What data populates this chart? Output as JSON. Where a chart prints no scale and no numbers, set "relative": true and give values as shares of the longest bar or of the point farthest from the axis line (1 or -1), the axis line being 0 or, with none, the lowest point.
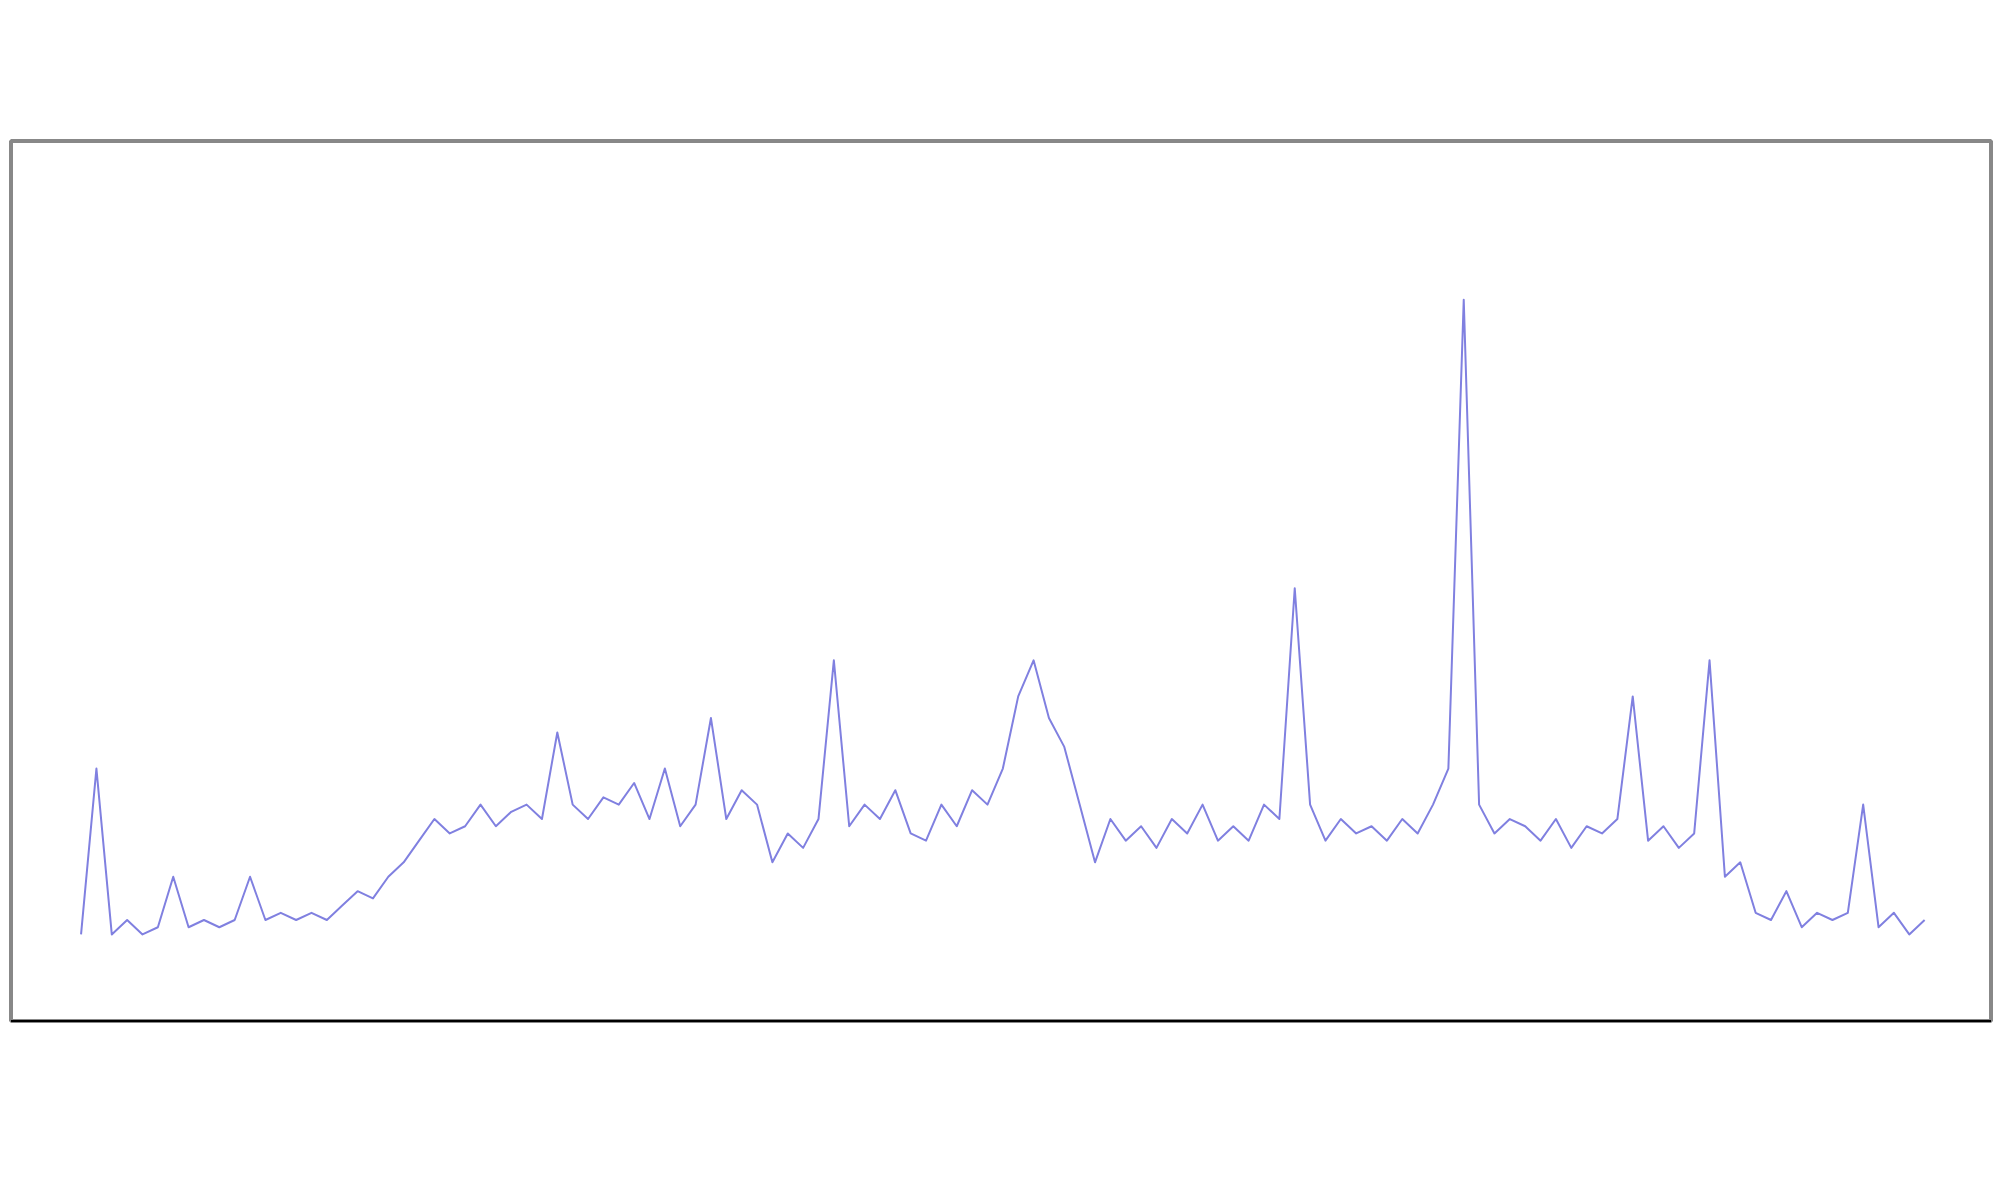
{
  "chart_data": {
    "type": "line",
    "relative": true,
    "grid": false,
    "categories": [
      null,
      null,
      null,
      null,
      null,
      null,
      null,
      null,
      null,
      null,
      null,
      null,
      null,
      null,
      null,
      null,
      null,
      null,
      null,
      null,
      null,
      null,
      null,
      null,
      null,
      null,
      null,
      null,
      null,
      null,
      null,
      null,
      null,
      null,
      null,
      null,
      null,
      null,
      null,
      null,
      null,
      null,
      null,
      null,
      null,
      null,
      null,
      null,
      null,
      null,
      null,
      null,
      null,
      null,
      null,
      null,
      null,
      null,
      null,
      null,
      null,
      null,
      null,
      null,
      null,
      null,
      null,
      null,
      null,
      null,
      null,
      null,
      null,
      null,
      null,
      null,
      null,
      null,
      null,
      null,
      null,
      null,
      null,
      null,
      null,
      null,
      null,
      null,
      null,
      null,
      null,
      null,
      null,
      null,
      null,
      null,
      null,
      null,
      null,
      null,
      null,
      null,
      null,
      null,
      null,
      null,
      null,
      null,
      null,
      null,
      null,
      null,
      null,
      null,
      null,
      null,
      null,
      null,
      null,
      null,
      null
    ],
    "series": [
      {
        "color": "#8080e0",
        "values": [
          0.12,
          0.35,
          0.12,
          0.14,
          0.12,
          0.13,
          0.2,
          0.13,
          0.14,
          0.13,
          0.14,
          0.2,
          0.14,
          0.15,
          0.14,
          0.15,
          0.14,
          0.16,
          0.18,
          0.17,
          0.2,
          0.22,
          0.25,
          0.28,
          0.26,
          0.27,
          0.3,
          0.27,
          0.29,
          0.3,
          0.28,
          0.4,
          0.3,
          0.28,
          0.31,
          0.3,
          0.33,
          0.28,
          0.35,
          0.27,
          0.3,
          0.42,
          0.28,
          0.32,
          0.3,
          0.22,
          0.26,
          0.24,
          0.28,
          0.5,
          0.27,
          0.3,
          0.28,
          0.32,
          0.26,
          0.25,
          0.3,
          0.27,
          0.32,
          0.3,
          0.35,
          0.45,
          0.5,
          0.42,
          0.38,
          0.3,
          0.22,
          0.28,
          0.25,
          0.27,
          0.24,
          0.28,
          0.26,
          0.3,
          0.25,
          0.27,
          0.25,
          0.3,
          0.28,
          0.6,
          0.3,
          0.25,
          0.28,
          0.26,
          0.27,
          0.25,
          0.28,
          0.26,
          0.3,
          0.35,
          1.0,
          0.3,
          0.26,
          0.28,
          0.27,
          0.25,
          0.28,
          0.24,
          0.27,
          0.26,
          0.28,
          0.45,
          0.25,
          0.27,
          0.24,
          0.26,
          0.5,
          0.2,
          0.22,
          0.15,
          0.14,
          0.18,
          0.13,
          0.15,
          0.14,
          0.15,
          0.3,
          0.13,
          0.15,
          0.12,
          0.14
        ]
      }
    ]
  }
}
